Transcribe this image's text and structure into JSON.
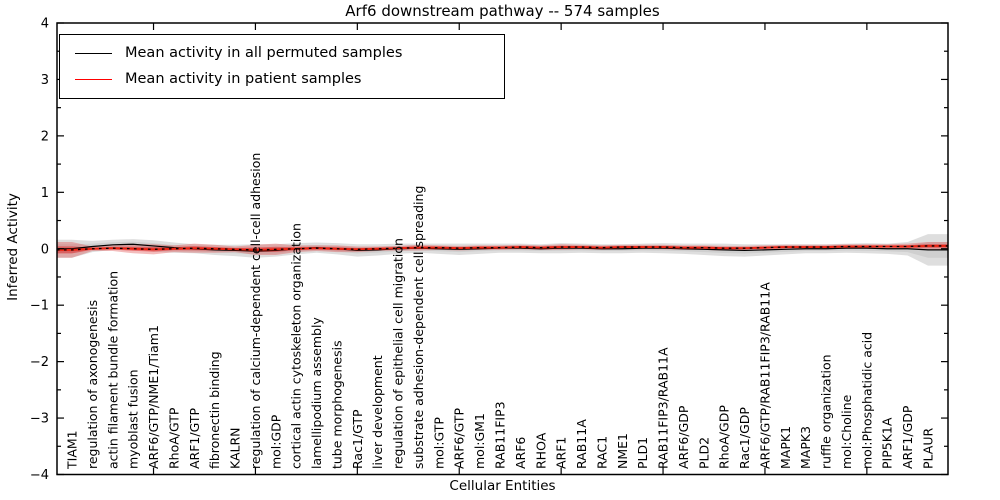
{
  "figure": {
    "title": "Arf6 downstream pathway -- 574 samples",
    "xlabel": "Cellular Entities",
    "ylabel": "Inferred Activity"
  },
  "legend": {
    "items": [
      {
        "label": "Mean activity in all permuted samples",
        "color": "#000000"
      },
      {
        "label": "Mean activity in patient samples",
        "color": "#ff0000"
      }
    ]
  },
  "chart_data": {
    "type": "line",
    "title": "Arf6 downstream pathway -- 574 samples",
    "xlabel": "Cellular Entities",
    "ylabel": "Inferred Activity",
    "ylim": [
      -4,
      4
    ],
    "yticks": [
      -4,
      -3,
      -2,
      -1,
      0,
      1,
      2,
      3,
      4
    ],
    "grid": false,
    "legend_position": "upper left",
    "categories": [
      "TIAM1",
      "regulation of axonogenesis",
      "actin filament bundle formation",
      "myoblast fusion",
      "ARF6/GTP/NME1/Tiam1",
      "RhoA/GTP",
      "ARF1/GTP",
      "fibronectin binding",
      "KALRN",
      "regulation of calcium-dependent cell-cell adhesion",
      "mol:GDP",
      "cortical actin cytoskeleton organization",
      "lamellipodium assembly",
      "tube morphogenesis",
      "Rac1/GTP",
      "liver development",
      "regulation of epithelial cell migration",
      "substrate adhesion-dependent cell spreading",
      "mol:GTP",
      "ARF6/GTP",
      "mol:GM1",
      "RAB11FIP3",
      "ARF6",
      "RHOA",
      "ARF1",
      "RAB11A",
      "RAC1",
      "NME1",
      "PLD1",
      "RAB11FIP3/RAB11A",
      "ARF6/GDP",
      "PLD2",
      "RhoA/GDP",
      "Rac1/GDP",
      "ARF6/GTP/RAB11FIP3/RAB11A",
      "MAPK1",
      "MAPK3",
      "ruffle organization",
      "mol:Choline",
      "mol:Phosphatidic acid",
      "PIP5K1A",
      "ARF1/GDP",
      "PLAUR"
    ],
    "series": [
      {
        "name": "Mean activity in all permuted samples",
        "color": "#000000",
        "band_color": "#999999",
        "values": [
          0.0,
          0.04,
          0.07,
          0.08,
          0.05,
          0.02,
          0.0,
          -0.02,
          -0.03,
          -0.04,
          -0.03,
          0.0,
          0.02,
          0.0,
          -0.03,
          -0.02,
          0.0,
          0.01,
          0.0,
          -0.01,
          0.0,
          0.01,
          0.01,
          0.0,
          0.01,
          0.01,
          0.0,
          0.0,
          0.01,
          0.01,
          0.0,
          -0.01,
          -0.02,
          -0.03,
          -0.02,
          -0.01,
          0.0,
          0.0,
          0.01,
          0.01,
          0.0,
          0.0,
          -0.02
        ],
        "band_halfwidth": [
          0.16,
          0.1,
          0.09,
          0.09,
          0.1,
          0.09,
          0.08,
          0.09,
          0.1,
          0.12,
          0.11,
          0.1,
          0.09,
          0.1,
          0.11,
          0.1,
          0.09,
          0.08,
          0.09,
          0.1,
          0.09,
          0.08,
          0.08,
          0.08,
          0.09,
          0.08,
          0.08,
          0.08,
          0.08,
          0.09,
          0.09,
          0.1,
          0.11,
          0.11,
          0.1,
          0.09,
          0.08,
          0.08,
          0.08,
          0.09,
          0.09,
          0.12,
          0.28
        ]
      },
      {
        "name": "Mean activity in patient samples",
        "color": "#ee2211",
        "band_color": "#e05050",
        "values": [
          -0.02,
          0.0,
          0.01,
          0.0,
          -0.01,
          0.0,
          0.01,
          0.0,
          -0.01,
          -0.02,
          -0.01,
          0.0,
          0.01,
          0.0,
          -0.01,
          0.0,
          0.01,
          0.02,
          0.02,
          0.01,
          0.02,
          0.02,
          0.03,
          0.02,
          0.03,
          0.03,
          0.02,
          0.03,
          0.03,
          0.03,
          0.02,
          0.02,
          0.01,
          0.01,
          0.02,
          0.03,
          0.03,
          0.03,
          0.04,
          0.04,
          0.04,
          0.04,
          0.05
        ],
        "band_halfwidth": [
          0.14,
          0.04,
          0.05,
          0.08,
          0.09,
          0.06,
          0.08,
          0.07,
          0.05,
          0.09,
          0.1,
          0.06,
          0.05,
          0.06,
          0.05,
          0.04,
          0.04,
          0.05,
          0.04,
          0.04,
          0.04,
          0.04,
          0.04,
          0.04,
          0.05,
          0.04,
          0.04,
          0.04,
          0.04,
          0.04,
          0.04,
          0.04,
          0.04,
          0.04,
          0.04,
          0.04,
          0.04,
          0.04,
          0.04,
          0.04,
          0.04,
          0.05,
          0.07
        ]
      }
    ]
  }
}
